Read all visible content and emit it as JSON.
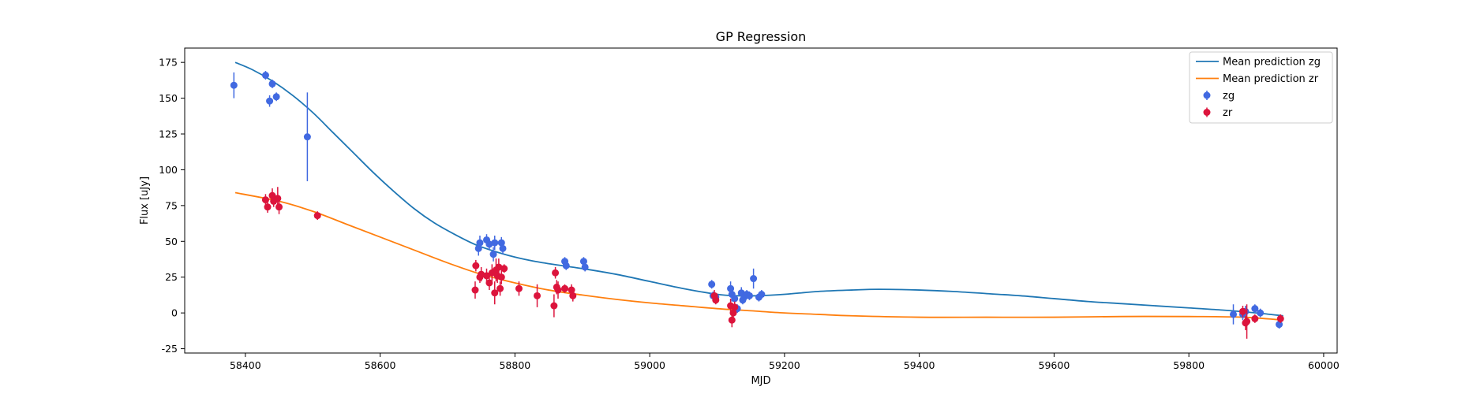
{
  "chart_data": {
    "type": "scatter",
    "title": "GP Regression",
    "xlabel": "MJD",
    "ylabel": "Flux [uJy]",
    "xlim": [
      58310,
      60020
    ],
    "ylim": [
      -28,
      185
    ],
    "xticks": [
      58400,
      58600,
      58800,
      59000,
      59200,
      59400,
      59600,
      59800,
      60000
    ],
    "yticks": [
      -25,
      0,
      25,
      50,
      75,
      100,
      125,
      150,
      175
    ],
    "grid": false,
    "legend_position": "top-right",
    "lines": [
      {
        "name": "Mean prediction zg",
        "color": "#1f77b4",
        "x": [
          58385,
          58410,
          58440,
          58470,
          58500,
          58530,
          58560,
          58590,
          58620,
          58650,
          58680,
          58710,
          58740,
          58770,
          58800,
          58830,
          58870,
          58900,
          58950,
          59000,
          59050,
          59100,
          59130,
          59160,
          59200,
          59250,
          59300,
          59340,
          59400,
          59450,
          59500,
          59550,
          59600,
          59650,
          59700,
          59750,
          59800,
          59850,
          59900,
          59940
        ],
        "y": [
          175,
          170,
          162,
          152,
          140,
          126,
          112,
          98,
          85,
          73,
          63,
          55,
          48,
          43,
          39,
          36,
          33,
          31,
          27,
          22,
          17,
          13,
          12,
          12,
          13,
          15,
          16,
          16.5,
          16,
          15,
          13.5,
          12,
          10,
          8,
          6.5,
          5,
          3.5,
          2,
          0,
          -2
        ]
      },
      {
        "name": "Mean prediction zr",
        "color": "#ff7f0e",
        "x": [
          58385,
          58450,
          58500,
          58550,
          58600,
          58650,
          58700,
          58750,
          58800,
          58850,
          58900,
          58950,
          59000,
          59050,
          59100,
          59150,
          59200,
          59250,
          59300,
          59400,
          59500,
          59600,
          59700,
          59800,
          59880,
          59940
        ],
        "y": [
          84,
          78,
          71,
          62,
          53,
          44,
          35,
          27,
          21,
          16,
          12.5,
          9.5,
          7,
          5,
          3,
          1.5,
          0,
          -1,
          -2,
          -3,
          -3,
          -3,
          -2.5,
          -2.5,
          -3,
          -5
        ]
      }
    ],
    "series": [
      {
        "name": "zg",
        "color": "#4169e1",
        "points": [
          [
            58383,
            159,
            9
          ],
          [
            58430,
            166,
            3
          ],
          [
            58436,
            148,
            4
          ],
          [
            58440,
            160,
            3
          ],
          [
            58446,
            151,
            3
          ],
          [
            58492,
            123,
            31
          ],
          [
            58746,
            45,
            5
          ],
          [
            58748,
            49,
            5
          ],
          [
            58758,
            51,
            4
          ],
          [
            58762,
            48,
            4
          ],
          [
            58768,
            41,
            5
          ],
          [
            58770,
            49,
            5
          ],
          [
            58780,
            49,
            4
          ],
          [
            58782,
            45,
            4
          ],
          [
            58874,
            36,
            3
          ],
          [
            58876,
            33,
            3
          ],
          [
            58902,
            36,
            3
          ],
          [
            58904,
            32,
            3
          ],
          [
            59092,
            20,
            3
          ],
          [
            59094,
            12,
            3
          ],
          [
            59098,
            11,
            3
          ],
          [
            59120,
            17,
            5
          ],
          [
            59122,
            13,
            5
          ],
          [
            59126,
            10,
            4
          ],
          [
            59130,
            3,
            3
          ],
          [
            59136,
            14,
            4
          ],
          [
            59138,
            9,
            3
          ],
          [
            59140,
            11,
            3
          ],
          [
            59144,
            13,
            3
          ],
          [
            59148,
            12,
            3
          ],
          [
            59154,
            24,
            7
          ],
          [
            59162,
            11,
            3
          ],
          [
            59166,
            13,
            3
          ],
          [
            59866,
            -1,
            7
          ],
          [
            59880,
            -1,
            4
          ],
          [
            59884,
            1,
            4
          ],
          [
            59898,
            3,
            3
          ],
          [
            59906,
            0,
            3
          ],
          [
            59934,
            -8,
            3
          ]
        ]
      },
      {
        "name": "zr",
        "color": "#dc143c",
        "points": [
          [
            58430,
            79,
            4
          ],
          [
            58433,
            74,
            4
          ],
          [
            58440,
            82,
            5
          ],
          [
            58442,
            78,
            4
          ],
          [
            58448,
            80,
            8
          ],
          [
            58450,
            74,
            5
          ],
          [
            58507,
            68,
            3
          ],
          [
            58741,
            16,
            6
          ],
          [
            58742,
            33,
            4
          ],
          [
            58748,
            25,
            4
          ],
          [
            58750,
            27,
            5
          ],
          [
            58758,
            26,
            5
          ],
          [
            58762,
            21,
            5
          ],
          [
            58766,
            28,
            6
          ],
          [
            58770,
            14,
            8
          ],
          [
            58772,
            30,
            8
          ],
          [
            58774,
            26,
            5
          ],
          [
            58776,
            32,
            6
          ],
          [
            58778,
            17,
            5
          ],
          [
            58780,
            25,
            5
          ],
          [
            58784,
            31,
            3
          ],
          [
            58806,
            17,
            5
          ],
          [
            58833,
            12,
            8
          ],
          [
            58858,
            5,
            8
          ],
          [
            58860,
            28,
            4
          ],
          [
            58862,
            18,
            5
          ],
          [
            58864,
            16,
            6
          ],
          [
            58874,
            17,
            3
          ],
          [
            58884,
            16,
            4
          ],
          [
            58886,
            12,
            4
          ],
          [
            59096,
            12,
            4
          ],
          [
            59098,
            9,
            3
          ],
          [
            59120,
            5,
            5
          ],
          [
            59122,
            -5,
            5
          ],
          [
            59124,
            0,
            4
          ],
          [
            59126,
            4,
            4
          ],
          [
            59880,
            1,
            4
          ],
          [
            59884,
            -7,
            5
          ],
          [
            59886,
            -6,
            12
          ],
          [
            59898,
            -4,
            3
          ],
          [
            59936,
            -4,
            3
          ]
        ]
      }
    ]
  }
}
